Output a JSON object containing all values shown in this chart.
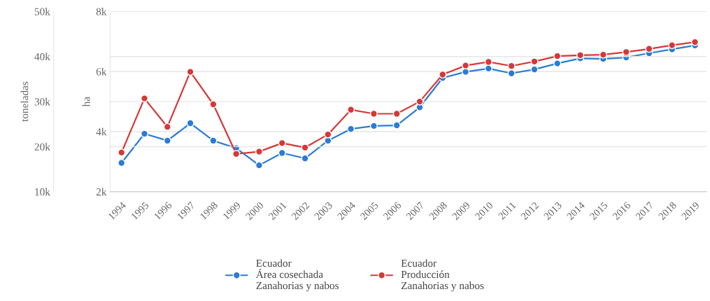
{
  "chart_data": {
    "type": "line",
    "categories": [
      "1994",
      "1995",
      "1996",
      "1997",
      "1998",
      "1999",
      "2000",
      "2001",
      "2002",
      "2003",
      "2004",
      "2005",
      "2006",
      "2007",
      "2008",
      "2009",
      "2010",
      "2011",
      "2012",
      "2013",
      "2014",
      "2015",
      "2016",
      "2017",
      "2018",
      "2019"
    ],
    "series": [
      {
        "name": "Ecuador\nÁrea cosechada\nZanahorias y nabos",
        "color": "#2a7bd6",
        "axis": "y2",
        "values": [
          2960,
          3930,
          3700,
          4280,
          3700,
          3450,
          2880,
          3290,
          3110,
          3700,
          4090,
          4190,
          4210,
          4810,
          5790,
          5990,
          6100,
          5940,
          6070,
          6270,
          6440,
          6420,
          6470,
          6610,
          6740,
          6870
        ]
      },
      {
        "name": "Ecuador\nProducción\nZanahorias y nabos",
        "color": "#d63838",
        "values": [
          18700,
          30700,
          24400,
          36600,
          29400,
          18400,
          18900,
          20800,
          19800,
          22700,
          28200,
          27300,
          27300,
          30000,
          36000,
          38000,
          38800,
          37900,
          38900,
          40100,
          40300,
          40400,
          41000,
          41700,
          42500,
          43200
        ]
      }
    ],
    "ylabel": "toneladas",
    "y2label": "ha",
    "ylim": [
      10000,
      50000
    ],
    "yticks": [
      {
        "value": 10000,
        "label": "10k"
      },
      {
        "value": 20000,
        "label": "20k"
      },
      {
        "value": 30000,
        "label": "30k"
      },
      {
        "value": 40000,
        "label": "40k"
      },
      {
        "value": 50000,
        "label": "50k"
      }
    ],
    "y2lim": [
      2000,
      8000
    ],
    "y2ticks": [
      {
        "value": 2000,
        "label": "2k"
      },
      {
        "value": 4000,
        "label": "4k"
      },
      {
        "value": 6000,
        "label": "6k"
      },
      {
        "value": 8000,
        "label": "8k"
      }
    ],
    "grid": "y",
    "legend": "bottom",
    "marker": "circle",
    "line_style": "solid"
  }
}
